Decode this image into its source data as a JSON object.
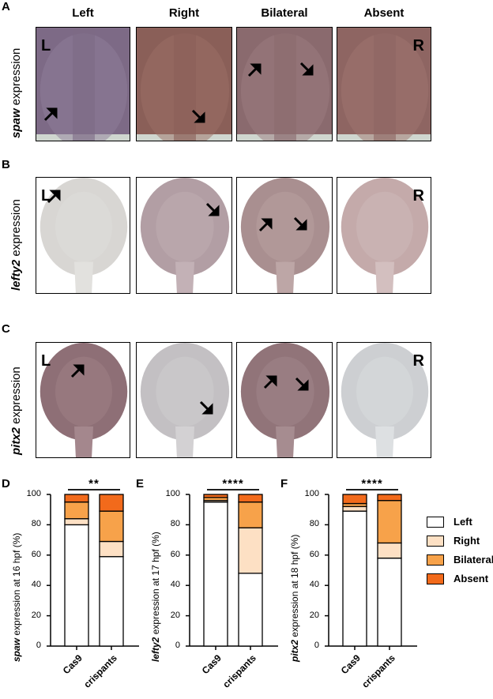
{
  "figure": {
    "panels_top": [
      {
        "letter": "A",
        "gene": "spaw",
        "suffix": " expression"
      },
      {
        "letter": "B",
        "gene": "lefty2",
        "suffix": " expression"
      },
      {
        "letter": "C",
        "gene": "pitx2",
        "suffix": " expression"
      }
    ],
    "columns": [
      "Left",
      "Right",
      "Bilateral",
      "Absent"
    ],
    "side_left": "L",
    "side_right": "R"
  },
  "colors": {
    "left": "#ffffff",
    "right": "#fde0c4",
    "bilateral": "#f7a24a",
    "absent": "#f26a1b"
  },
  "legend": [
    "Left",
    "Right",
    "Bilateral",
    "Absent"
  ],
  "chart_data": [
    {
      "panel": "D",
      "type": "bar",
      "stacked": true,
      "ylabel_gene": "spaw",
      "ylabel_suffix": " expression at 16 hpf (%)",
      "categories": [
        "Cas9",
        "crispants"
      ],
      "series": [
        {
          "name": "Left",
          "values": [
            80,
            59
          ]
        },
        {
          "name": "Right",
          "values": [
            4,
            10
          ]
        },
        {
          "name": "Bilateral",
          "values": [
            11,
            20
          ]
        },
        {
          "name": "Absent",
          "values": [
            5,
            11
          ]
        }
      ],
      "ylim": [
        0,
        100
      ],
      "yticks": [
        0,
        20,
        40,
        60,
        80,
        100
      ],
      "significance": "**"
    },
    {
      "panel": "E",
      "type": "bar",
      "stacked": true,
      "ylabel_gene": "lefty2",
      "ylabel_suffix": " expression at 17 hpf (%)",
      "categories": [
        "Cas9",
        "crispants"
      ],
      "series": [
        {
          "name": "Left",
          "values": [
            95,
            48
          ]
        },
        {
          "name": "Right",
          "values": [
            1,
            30
          ]
        },
        {
          "name": "Bilateral",
          "values": [
            2,
            17
          ]
        },
        {
          "name": "Absent",
          "values": [
            2,
            5
          ]
        }
      ],
      "ylim": [
        0,
        100
      ],
      "yticks": [
        0,
        20,
        40,
        60,
        80,
        100
      ],
      "significance": "****"
    },
    {
      "panel": "F",
      "type": "bar",
      "stacked": true,
      "ylabel_gene": "pitx2",
      "ylabel_suffix": " expression at 18 hpf (%)",
      "categories": [
        "Cas9",
        "crispants"
      ],
      "series": [
        {
          "name": "Left",
          "values": [
            89,
            58
          ]
        },
        {
          "name": "Right",
          "values": [
            3,
            10
          ]
        },
        {
          "name": "Bilateral",
          "values": [
            2,
            28
          ]
        },
        {
          "name": "Absent",
          "values": [
            6,
            4
          ]
        }
      ],
      "ylim": [
        0,
        100
      ],
      "yticks": [
        0,
        20,
        40,
        60,
        80,
        100
      ],
      "significance": "****"
    }
  ]
}
